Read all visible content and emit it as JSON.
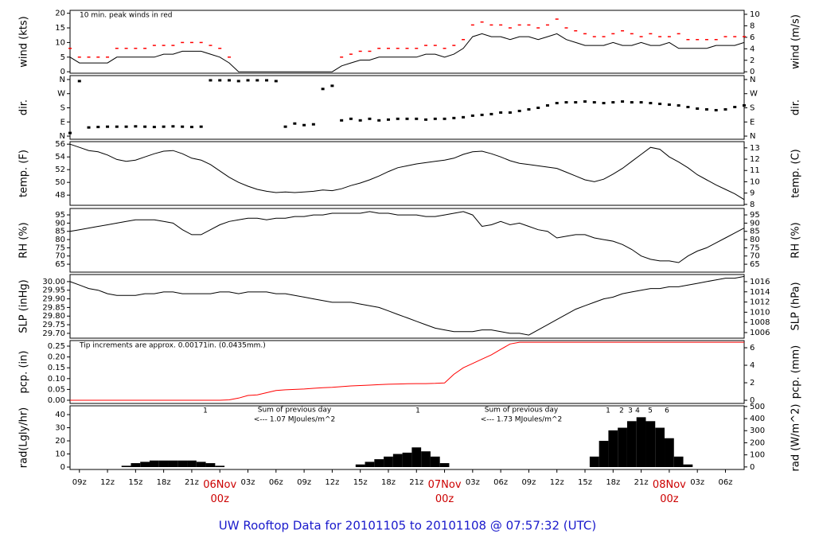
{
  "title": "UW Rooftop Data for 20101105  to  20101108 @ 07:57:32  (UTC)",
  "chart_data": [
    {
      "type": "line",
      "ylabel": "wind (kts)",
      "y2label": "wind (m/s)",
      "annotation": "10 min. peak winds in red",
      "annotation_color": "#cc0000",
      "ylim": [
        -0.5,
        21
      ],
      "yticks": [
        0,
        5,
        10,
        15,
        20
      ],
      "y2lim": [
        -0.25,
        10.69
      ],
      "y2ticks": [
        0,
        2,
        4,
        6,
        8,
        10
      ],
      "color": "#000000",
      "values": [
        5,
        3,
        3,
        3,
        3,
        5,
        5,
        5,
        5,
        5,
        6,
        6,
        7,
        7,
        7,
        6,
        5,
        3,
        0,
        0,
        0,
        0,
        0,
        0,
        0,
        0,
        0,
        0,
        0,
        2,
        3,
        4,
        4,
        5,
        5,
        5,
        5,
        5,
        6,
        6,
        5,
        6,
        8,
        12,
        13,
        12,
        12,
        11,
        12,
        12,
        11,
        12,
        13,
        11,
        10,
        9,
        9,
        9,
        10,
        9,
        9,
        10,
        9,
        9,
        10,
        8,
        8,
        8,
        8,
        9,
        9,
        9,
        10
      ],
      "peak_color": "#ff0000",
      "peak_values": [
        8,
        5,
        5,
        5,
        5,
        8,
        8,
        8,
        8,
        9,
        9,
        9,
        10,
        10,
        10,
        9,
        8,
        5,
        null,
        null,
        null,
        null,
        null,
        null,
        null,
        null,
        null,
        null,
        null,
        5,
        6,
        7,
        7,
        8,
        8,
        8,
        8,
        8,
        9,
        9,
        8,
        9,
        11,
        16,
        17,
        16,
        16,
        15,
        16,
        16,
        15,
        16,
        18,
        15,
        14,
        13,
        12,
        12,
        13,
        14,
        13,
        12,
        13,
        12,
        12,
        13,
        11,
        11,
        11,
        11,
        12,
        12,
        12
      ]
    },
    {
      "type": "scatter",
      "ylabel": "dir.",
      "y2label": "dir.",
      "ylim": [
        -20,
        385
      ],
      "yticks": [
        {
          "value": 0,
          "label": "N"
        },
        {
          "value": 90,
          "label": "E"
        },
        {
          "value": 180,
          "label": "S"
        },
        {
          "value": 270,
          "label": "W"
        },
        {
          "value": 360,
          "label": "N"
        }
      ],
      "y2lim": [
        -20,
        385
      ],
      "y2ticks": [
        {
          "value": 0,
          "label": "N"
        },
        {
          "value": 90,
          "label": "E"
        },
        {
          "value": 180,
          "label": "S"
        },
        {
          "value": 270,
          "label": "W"
        },
        {
          "value": 360,
          "label": "N"
        }
      ],
      "color": "#000000",
      "values": [
        20,
        350,
        55,
        58,
        60,
        60,
        60,
        62,
        60,
        58,
        60,
        62,
        60,
        58,
        60,
        355,
        355,
        355,
        350,
        355,
        355,
        355,
        350,
        60,
        80,
        70,
        75,
        300,
        320,
        100,
        110,
        100,
        110,
        100,
        105,
        110,
        110,
        110,
        105,
        110,
        110,
        115,
        120,
        130,
        135,
        140,
        150,
        150,
        160,
        170,
        180,
        195,
        210,
        215,
        215,
        220,
        215,
        210,
        215,
        220,
        215,
        215,
        210,
        205,
        200,
        195,
        185,
        175,
        170,
        165,
        170,
        185,
        195
      ]
    },
    {
      "type": "line",
      "ylabel": "temp. (F)",
      "y2label": "temp. (C)",
      "ylim": [
        46.4,
        56.4
      ],
      "yticks": [
        48,
        50,
        52,
        54,
        56
      ],
      "y2lim": [
        7.92,
        13.55
      ],
      "y2ticks": [
        8,
        9,
        10,
        11,
        12,
        13
      ],
      "color": "#000000",
      "values": [
        56,
        55.5,
        55,
        54.8,
        54.3,
        53.6,
        53.3,
        53.5,
        54,
        54.5,
        54.9,
        55,
        54.5,
        53.8,
        53.5,
        52.8,
        51.8,
        50.8,
        50,
        49.4,
        48.9,
        48.6,
        48.4,
        48.5,
        48.4,
        48.5,
        48.6,
        48.8,
        48.7,
        49,
        49.5,
        49.9,
        50.4,
        51,
        51.7,
        52.3,
        52.6,
        52.9,
        53.1,
        53.3,
        53.5,
        53.8,
        54.4,
        54.8,
        54.9,
        54.5,
        54,
        53.4,
        53,
        52.8,
        52.6,
        52.4,
        52.2,
        51.6,
        51,
        50.4,
        50.1,
        50.5,
        51.3,
        52.2,
        53.3,
        54.4,
        55.5,
        55.2,
        54,
        53.2,
        52.3,
        51.2,
        50.4,
        49.6,
        48.9,
        48.2,
        47.3
      ]
    },
    {
      "type": "line",
      "ylabel": "RH (%)",
      "y2label": "RH (%)",
      "ylim": [
        60.2,
        98.9
      ],
      "yticks": [
        65,
        70,
        75,
        80,
        85,
        90,
        95
      ],
      "y2lim": [
        60.2,
        98.9
      ],
      "y2ticks": [
        65,
        70,
        75,
        80,
        85,
        90,
        95
      ],
      "color": "#000000",
      "values": [
        85,
        86,
        87,
        88,
        89,
        90,
        91,
        92,
        92,
        92,
        91,
        90,
        86,
        83,
        83,
        86,
        89,
        91,
        92,
        93,
        93,
        92,
        93,
        93,
        94,
        94,
        95,
        95,
        96,
        96,
        96,
        96,
        97,
        96,
        96,
        95,
        95,
        95,
        94,
        94,
        95,
        96,
        97,
        95,
        88,
        89,
        91,
        89,
        90,
        88,
        86,
        85,
        81,
        82,
        83,
        83,
        81,
        80,
        79,
        77,
        74,
        70,
        68,
        67,
        67,
        66,
        70,
        73,
        75,
        78,
        81,
        84,
        87
      ]
    },
    {
      "type": "line",
      "ylabel": "SLP (inHg)",
      "y2label": "SLP (hPa)",
      "ylim": [
        29.672,
        30.041
      ],
      "yticks": [
        {
          "value": 29.7,
          "label": "29.70"
        },
        {
          "value": 29.75,
          "label": "29.75"
        },
        {
          "value": 29.8,
          "label": "29.80"
        },
        {
          "value": 29.85,
          "label": "29.85"
        },
        {
          "value": 29.9,
          "label": "29.90"
        },
        {
          "value": 29.95,
          "label": "29.95"
        },
        {
          "value": 30,
          "label": "30.00"
        }
      ],
      "y2lim": [
        1004.9,
        1017.4
      ],
      "y2ticks": [
        1006,
        1008,
        1010,
        1012,
        1014,
        1016
      ],
      "color": "#000000",
      "values": [
        30.0,
        29.98,
        29.96,
        29.95,
        29.93,
        29.92,
        29.92,
        29.92,
        29.93,
        29.93,
        29.94,
        29.94,
        29.93,
        29.93,
        29.93,
        29.93,
        29.94,
        29.94,
        29.93,
        29.94,
        29.94,
        29.94,
        29.93,
        29.93,
        29.92,
        29.91,
        29.9,
        29.89,
        29.88,
        29.88,
        29.88,
        29.87,
        29.86,
        29.85,
        29.83,
        29.81,
        29.79,
        29.77,
        29.75,
        29.73,
        29.72,
        29.71,
        29.71,
        29.71,
        29.72,
        29.72,
        29.71,
        29.7,
        29.7,
        29.69,
        29.72,
        29.75,
        29.78,
        29.81,
        29.84,
        29.86,
        29.88,
        29.9,
        29.91,
        29.93,
        29.94,
        29.95,
        29.96,
        29.96,
        29.97,
        29.97,
        29.98,
        29.99,
        30.0,
        30.01,
        30.02,
        30.02,
        30.03
      ]
    },
    {
      "type": "line",
      "ylabel": "pcp. (in)",
      "y2label": "pcp. (mm)",
      "annotation": "Tip increments are approx. 0.00171in. (0.0435mm.)",
      "annotation_color": "#cc0000",
      "ylim": [
        -0.0147,
        0.2757
      ],
      "yticks": [
        {
          "value": 0,
          "label": "0.00"
        },
        {
          "value": 0.05,
          "label": "0.05"
        },
        {
          "value": 0.1,
          "label": "0.10"
        },
        {
          "value": 0.15,
          "label": "0.15"
        },
        {
          "value": 0.2,
          "label": "0.20"
        },
        {
          "value": 0.25,
          "label": "0.25"
        }
      ],
      "y2lim": [
        -0.36,
        6.82
      ],
      "y2ticks": [
        0,
        2,
        4,
        6
      ],
      "color": "#ff0000",
      "values": [
        0,
        0,
        0,
        0,
        0,
        0,
        0,
        0,
        0,
        0,
        0,
        0,
        0,
        0,
        0,
        0,
        0,
        0.002,
        0.01,
        0.022,
        0.025,
        0.035,
        0.045,
        0.048,
        0.05,
        0.052,
        0.055,
        0.058,
        0.06,
        0.063,
        0.066,
        0.068,
        0.07,
        0.072,
        0.074,
        0.075,
        0.076,
        0.077,
        0.077,
        0.078,
        0.08,
        0.12,
        0.15,
        0.17,
        0.19,
        0.21,
        0.235,
        0.26,
        0.268,
        0.268,
        0.268,
        0.268,
        0.268,
        0.268,
        0.268,
        0.268,
        0.268,
        0.268,
        0.268,
        0.268,
        0.268,
        0.268,
        0.268,
        0.268,
        0.268,
        0.268,
        0.268,
        0.268,
        0.268,
        0.268,
        0.268,
        0.268,
        0.268
      ]
    },
    {
      "type": "area",
      "ylabel": "rad(Lgly/hr)",
      "y2label": "rad (W/m^2)",
      "annotations": [
        "1",
        "Sum of previous day",
        "<--- 1.07 MJoules/m^2",
        "1",
        "Sum of previous day",
        "<--- 1.73 MJoules/m^2",
        "1",
        "2",
        "3",
        "4",
        "5",
        "6"
      ],
      "annotation_color": "#9900cc",
      "ylim": [
        -1.82,
        46.7
      ],
      "yticks": [
        0,
        10,
        20,
        30,
        40
      ],
      "y2lim": [
        -20.8,
        505.6
      ],
      "y2ticks": [
        0,
        100,
        200,
        300,
        400,
        500
      ],
      "color": "#000000",
      "date_color": "#cc0000",
      "categories": [
        null,
        "09z",
        null,
        null,
        "12z",
        null,
        null,
        "15z",
        null,
        null,
        "18z",
        null,
        null,
        "21z",
        null,
        null,
        "06Nov\n00z",
        null,
        null,
        "03z",
        null,
        null,
        "06z",
        null,
        null,
        "09z",
        null,
        null,
        "12z",
        null,
        null,
        "15z",
        null,
        null,
        "18z",
        null,
        null,
        "21z",
        null,
        null,
        "07Nov\n00z",
        null,
        null,
        "03z",
        null,
        null,
        "06z",
        null,
        null,
        "09z",
        null,
        null,
        "12z",
        null,
        null,
        "15z",
        null,
        null,
        "18z",
        null,
        null,
        "21z",
        null,
        null,
        "08Nov\n00z",
        null,
        null,
        "03z",
        null,
        null,
        "06z",
        null,
        null
      ],
      "values": [
        0,
        0,
        0,
        0,
        0,
        0,
        1,
        3,
        4,
        5,
        5,
        5,
        5,
        5,
        4,
        3,
        1,
        0,
        0,
        0,
        0,
        0,
        0,
        0,
        0,
        0,
        0,
        0,
        0,
        0,
        0,
        2,
        4,
        6,
        8,
        10,
        11,
        15,
        12,
        8,
        3,
        0,
        0,
        0,
        0,
        0,
        0,
        0,
        0,
        0,
        0,
        0,
        0,
        0,
        0,
        0,
        8,
        20,
        28,
        30,
        35,
        38,
        35,
        30,
        22,
        8,
        2,
        0,
        0,
        0,
        0,
        0,
        0
      ]
    }
  ]
}
